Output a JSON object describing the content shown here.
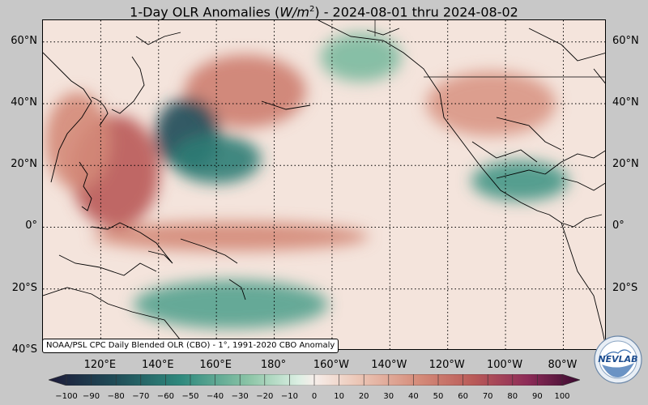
{
  "title": {
    "prefix": "1-Day OLR Anomalies (",
    "unit": "W/m",
    "unit_sup": "2",
    "suffix": ") - 2024-08-01 thru 2024-08-02"
  },
  "map": {
    "type": "filled-contour anomaly map",
    "projection": "equirectangular",
    "lon_range_deg_east": [
      100,
      295
    ],
    "lat_range_deg": [
      -40,
      67
    ],
    "graticule": "dotted",
    "coastlines": true,
    "lat_labels": [
      "60°N",
      "40°N",
      "20°N",
      "0°",
      "20°S",
      "40°S"
    ],
    "lat_values": [
      60,
      40,
      20,
      0,
      -20,
      -40
    ],
    "lon_labels": [
      "120°E",
      "140°E",
      "160°E",
      "180°",
      "160°W",
      "140°W",
      "120°W",
      "100°W",
      "80°W"
    ],
    "lon_values_deg_east": [
      120,
      140,
      160,
      180,
      200,
      220,
      240,
      260,
      280
    ]
  },
  "credit": "NOAA/PSL CPC Daily Blended OLR (CBO) - 1°, 1991-2020 CBO Anomaly",
  "colorbar": {
    "min": -100,
    "max": 100,
    "extend": "both",
    "tick_labels": [
      "−100",
      "−90",
      "−80",
      "−70",
      "−60",
      "−50",
      "−40",
      "−30",
      "−20",
      "−10",
      "0",
      "10",
      "20",
      "30",
      "40",
      "50",
      "60",
      "70",
      "80",
      "90",
      "100"
    ],
    "tick_values": [
      -100,
      -90,
      -80,
      -70,
      -60,
      -50,
      -40,
      -30,
      -20,
      -10,
      0,
      10,
      20,
      30,
      40,
      50,
      60,
      70,
      80,
      90,
      100
    ],
    "colors": {
      "low_end": "#1e1b3a",
      "teal": "#2f8a7e",
      "light_green": "#cfe8d8",
      "neutral": "#f6eeea",
      "light_red": "#e9b8a6",
      "red": "#c9705f",
      "purple_end": "#6a1a4c"
    }
  },
  "anomaly_regions": [
    {
      "name": "Philippines positive",
      "lon": 125,
      "lat": 18,
      "value": 60
    },
    {
      "name": "East Asia positive",
      "lon": 112,
      "lat": 28,
      "value": 40
    },
    {
      "name": "North Pacific positive",
      "lon": 170,
      "lat": 44,
      "value": 45
    },
    {
      "name": "NE Pacific positive",
      "lon": 255,
      "lat": 40,
      "value": 35
    },
    {
      "name": "Western Pacific negative",
      "lon": 150,
      "lat": 30,
      "value": -75
    },
    {
      "name": "Central Pacific negative",
      "lon": 160,
      "lat": 22,
      "value": -55
    },
    {
      "name": "Central America negative",
      "lon": 265,
      "lat": 15,
      "value": -45
    },
    {
      "name": "South Pacific band negative",
      "lon": 165,
      "lat": -25,
      "value": -40
    },
    {
      "name": "Equatorial warm band",
      "lon": 165,
      "lat": -3,
      "value": 40
    },
    {
      "name": "Gulf of Alaska negative",
      "lon": 210,
      "lat": 55,
      "value": -30
    }
  ],
  "logo": {
    "text": "NEVLAB"
  }
}
